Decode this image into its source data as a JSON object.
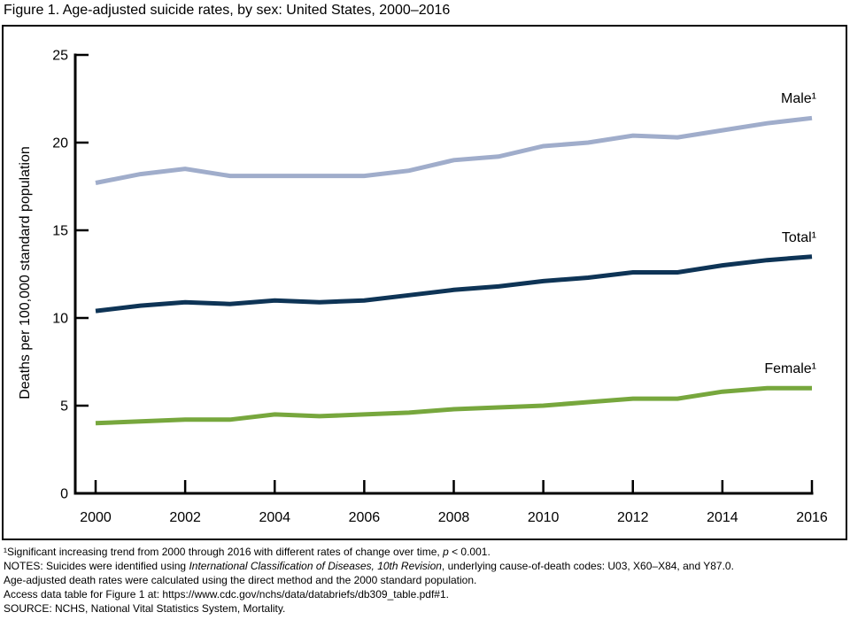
{
  "page": {
    "title": "Figure 1. Age-adjusted suicide rates, by sex: United States, 2000–2016"
  },
  "chart_data": {
    "type": "line",
    "title": "Figure 1. Age-adjusted suicide rates, by sex: United States, 2000–2016",
    "x": [
      2000,
      2001,
      2002,
      2003,
      2004,
      2005,
      2006,
      2007,
      2008,
      2009,
      2010,
      2011,
      2012,
      2013,
      2014,
      2015,
      2016
    ],
    "xticks": [
      2000,
      2002,
      2004,
      2006,
      2008,
      2010,
      2012,
      2014,
      2016
    ],
    "yticks": [
      0,
      5,
      10,
      15,
      20,
      25
    ],
    "ylim": [
      0,
      25
    ],
    "xlabel": "",
    "ylabel": "Deaths per 100,000 standard population",
    "grid": false,
    "legend_position": "labels-at-line-ends",
    "series": [
      {
        "name": "Male",
        "label": "Male¹",
        "color": "#a0adcb",
        "values": [
          17.7,
          18.2,
          18.5,
          18.1,
          18.1,
          18.1,
          18.1,
          18.4,
          19.0,
          19.2,
          19.8,
          20.0,
          20.4,
          20.3,
          20.7,
          21.1,
          21.4
        ]
      },
      {
        "name": "Total",
        "label": "Total¹",
        "color": "#0e3456",
        "values": [
          10.4,
          10.7,
          10.9,
          10.8,
          11.0,
          10.9,
          11.0,
          11.3,
          11.6,
          11.8,
          12.1,
          12.3,
          12.6,
          12.6,
          13.0,
          13.3,
          13.5
        ]
      },
      {
        "name": "Female",
        "label": "Female¹",
        "color": "#77a73d",
        "values": [
          4.0,
          4.1,
          4.2,
          4.2,
          4.5,
          4.4,
          4.5,
          4.6,
          4.8,
          4.9,
          5.0,
          5.2,
          5.4,
          5.4,
          5.8,
          6.0,
          6.0
        ]
      }
    ]
  },
  "footnotes": [
    {
      "segments": [
        {
          "t": "¹Significant increasing trend from 2000 through 2016 with different rates of change over time, "
        },
        {
          "t": "p",
          "i": true
        },
        {
          "t": " < 0.001."
        }
      ]
    },
    {
      "segments": [
        {
          "t": "NOTES: Suicides were identified using "
        },
        {
          "t": "International Classification of Diseases, 10th Revision",
          "i": true
        },
        {
          "t": ", underlying cause-of-death codes: U03, X60–X84, and Y87.0."
        }
      ]
    },
    {
      "segments": [
        {
          "t": "Age-adjusted death rates were calculated using the direct method and the 2000 standard population."
        }
      ]
    },
    {
      "segments": [
        {
          "t": "Access data table for Figure 1 at: https://www.cdc.gov/nchs/data/databriefs/db309_table.pdf#1."
        }
      ]
    },
    {
      "segments": [
        {
          "t": "SOURCE: NCHS, National Vital Statistics System, Mortality."
        }
      ]
    }
  ]
}
